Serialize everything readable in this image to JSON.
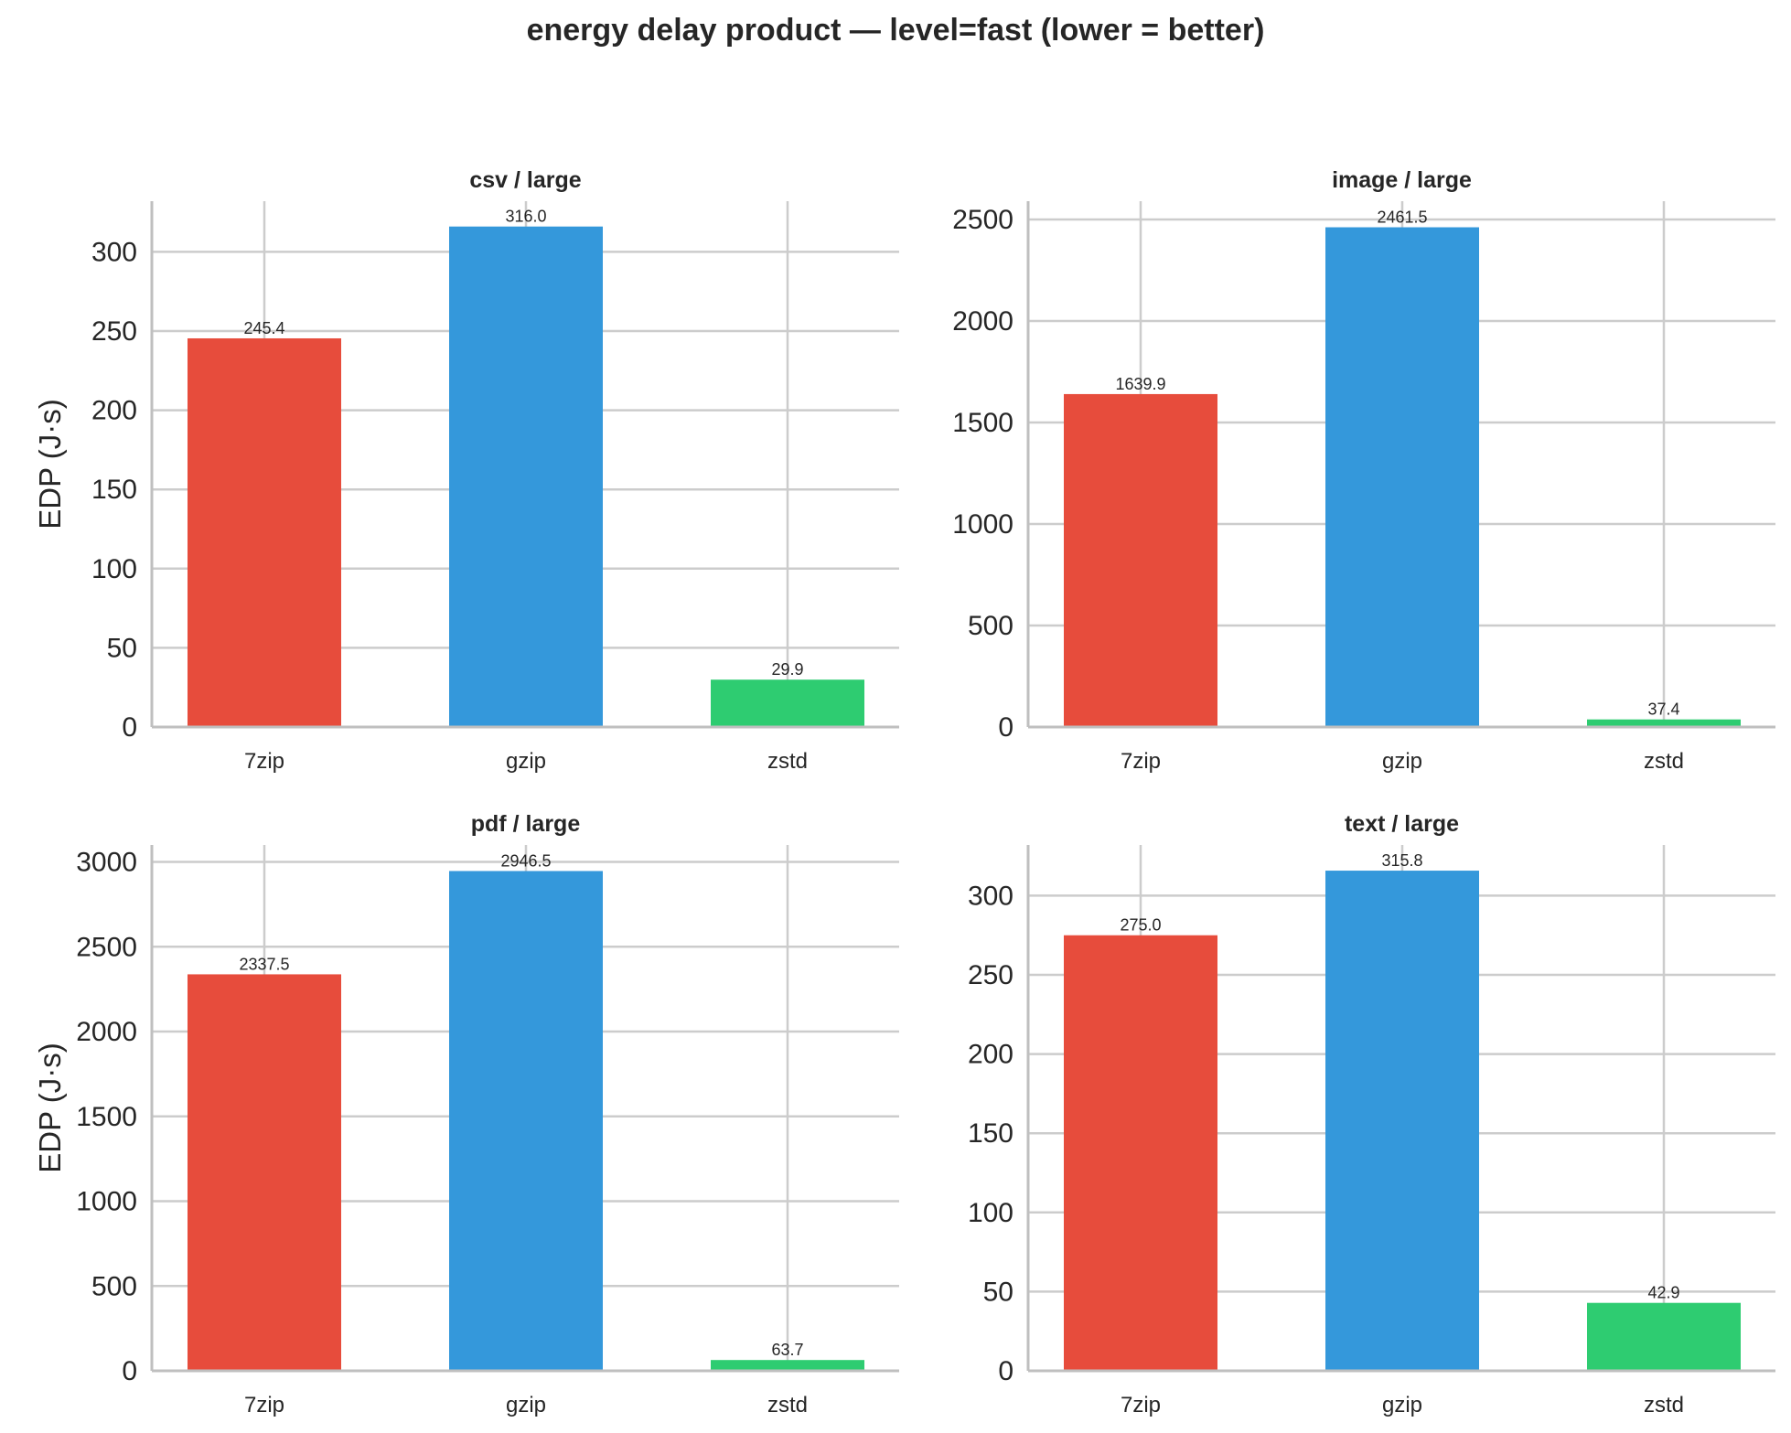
{
  "title": "energy delay product — level=fast (lower = better)",
  "colors": {
    "7zip": "#e74c3c",
    "gzip": "#3498db",
    "zstd": "#2ecc71",
    "grid": "#cccccc",
    "axis": "#bfbfbf",
    "text": "#262626"
  },
  "chart_data": [
    {
      "type": "bar",
      "title": "csv / large",
      "categories": [
        "7zip",
        "gzip",
        "zstd"
      ],
      "values": [
        245.4,
        316.0,
        29.9
      ],
      "value_labels": [
        "245.4",
        "316.0",
        "29.9"
      ],
      "ylabel": "EDP (J·s)",
      "xlabel": "",
      "ylim": [
        0,
        332
      ],
      "yticks": [
        0,
        50,
        100,
        150,
        200,
        250,
        300
      ]
    },
    {
      "type": "bar",
      "title": "image / large",
      "categories": [
        "7zip",
        "gzip",
        "zstd"
      ],
      "values": [
        1639.9,
        2461.5,
        37.4
      ],
      "value_labels": [
        "1639.9",
        "2461.5",
        "37.4"
      ],
      "ylabel": "",
      "xlabel": "",
      "ylim": [
        0,
        2590
      ],
      "yticks": [
        0,
        500,
        1000,
        1500,
        2000,
        2500
      ]
    },
    {
      "type": "bar",
      "title": "pdf / large",
      "categories": [
        "7zip",
        "gzip",
        "zstd"
      ],
      "values": [
        2337.5,
        2946.5,
        63.7
      ],
      "value_labels": [
        "2337.5",
        "2946.5",
        "63.7"
      ],
      "ylabel": "EDP (J·s)",
      "xlabel": "",
      "ylim": [
        0,
        3100
      ],
      "yticks": [
        0,
        500,
        1000,
        1500,
        2000,
        2500,
        3000
      ]
    },
    {
      "type": "bar",
      "title": "text / large",
      "categories": [
        "7zip",
        "gzip",
        "zstd"
      ],
      "values": [
        275.0,
        315.8,
        42.9
      ],
      "value_labels": [
        "275.0",
        "315.8",
        "42.9"
      ],
      "ylabel": "",
      "xlabel": "",
      "ylim": [
        0,
        332
      ],
      "yticks": [
        0,
        50,
        100,
        150,
        200,
        250,
        300
      ]
    }
  ]
}
